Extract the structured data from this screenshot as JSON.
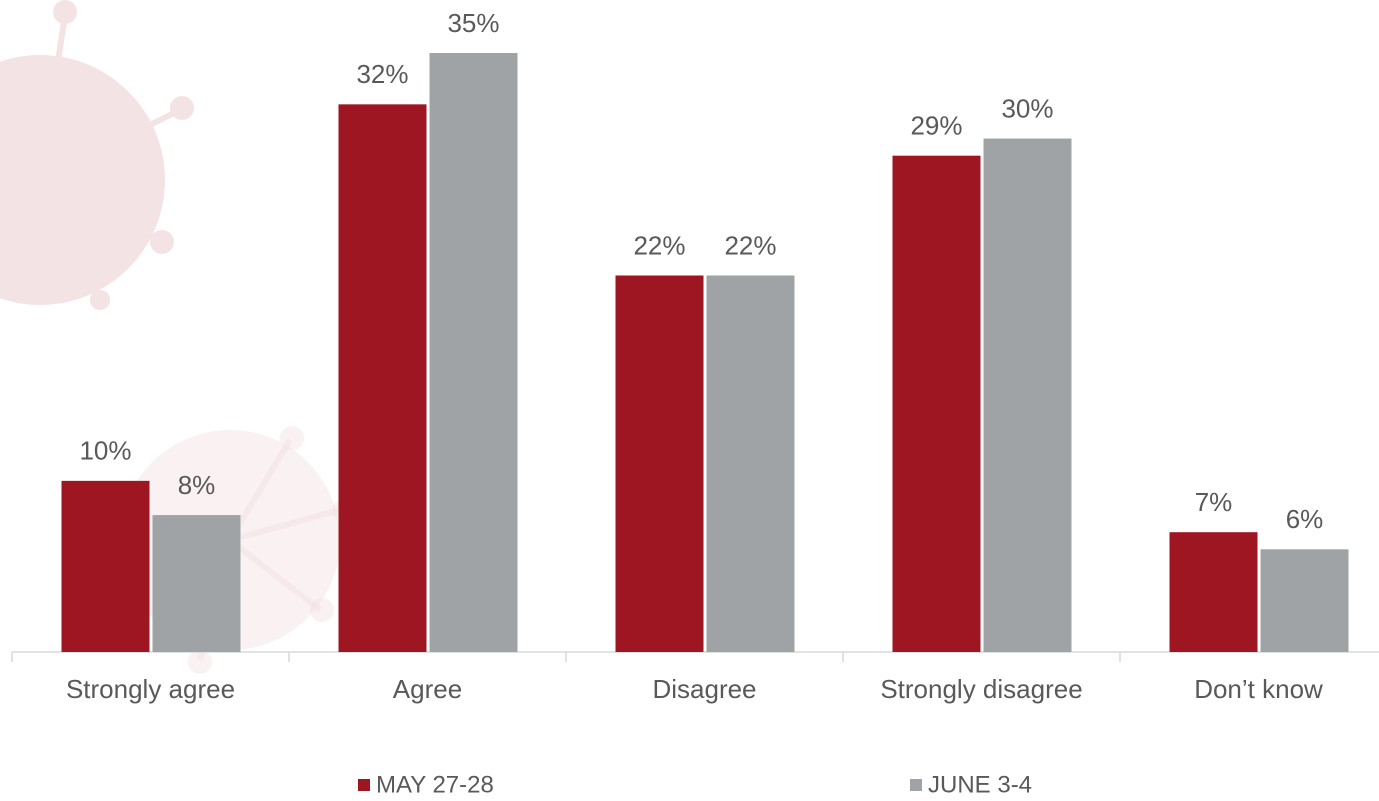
{
  "chart_data": {
    "type": "bar",
    "categories": [
      "Strongly agree",
      "Agree",
      "Disagree",
      "Strongly disagree",
      "Don’t know"
    ],
    "series": [
      {
        "name": "MAY 27-28",
        "color": "#9e1622",
        "values": [
          10,
          32,
          22,
          29,
          7
        ],
        "value_labels": [
          "10%",
          "32%",
          "22%",
          "29%",
          "7%"
        ]
      },
      {
        "name": "JUNE 3-4",
        "color": "#a0a3a6",
        "values": [
          8,
          35,
          22,
          30,
          6
        ],
        "value_labels": [
          "8%",
          "35%",
          "22%",
          "30%",
          "6%"
        ]
      }
    ]
  }
}
